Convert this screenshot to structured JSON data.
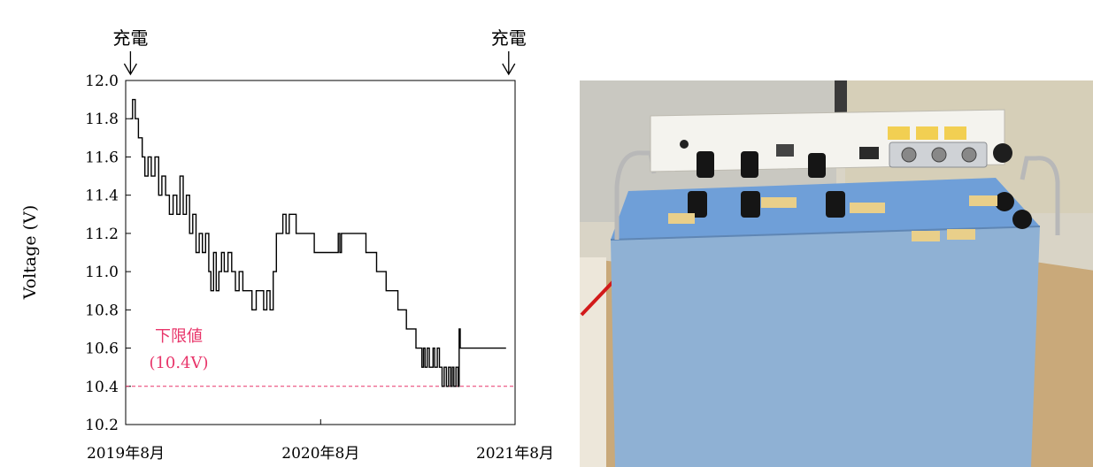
{
  "chart_data": {
    "type": "line",
    "xlabel": "",
    "ylabel": "Voltage (V)",
    "ylim": [
      10.2,
      12.0
    ],
    "xlim": [
      "2019-08",
      "2021-08"
    ],
    "y_ticks": [
      "12.0",
      "11.8",
      "11.6",
      "11.4",
      "11.2",
      "11.0",
      "10.8",
      "10.6",
      "10.4",
      "10.2"
    ],
    "x_ticks": [
      "2019年8月",
      "2020年8月",
      "2021年8月"
    ],
    "grid": false,
    "threshold": {
      "value": 10.4,
      "label_line1": "下限値",
      "label_line2": "(10.4V)",
      "color": "#e8356a"
    },
    "charge_markers": [
      {
        "label": "充電",
        "x": "2019-08-10"
      },
      {
        "label": "充電",
        "x": "2021-07-20"
      }
    ],
    "series": [
      {
        "color": "#000000",
        "points": [
          [
            "2019-08-10",
            11.8
          ],
          [
            "2019-08-14",
            11.9
          ],
          [
            "2019-08-19",
            11.8
          ],
          [
            "2019-08-25",
            11.7
          ],
          [
            "2019-09-01",
            11.6
          ],
          [
            "2019-09-06",
            11.5
          ],
          [
            "2019-09-12",
            11.6
          ],
          [
            "2019-09-18",
            11.5
          ],
          [
            "2019-09-25",
            11.6
          ],
          [
            "2019-10-02",
            11.4
          ],
          [
            "2019-10-08",
            11.5
          ],
          [
            "2019-10-15",
            11.4
          ],
          [
            "2019-10-22",
            11.3
          ],
          [
            "2019-10-29",
            11.4
          ],
          [
            "2019-11-05",
            11.3
          ],
          [
            "2019-11-11",
            11.5
          ],
          [
            "2019-11-17",
            11.3
          ],
          [
            "2019-11-23",
            11.4
          ],
          [
            "2019-11-29",
            11.2
          ],
          [
            "2019-12-05",
            11.3
          ],
          [
            "2019-12-11",
            11.1
          ],
          [
            "2019-12-17",
            11.2
          ],
          [
            "2019-12-23",
            11.1
          ],
          [
            "2019-12-29",
            11.2
          ],
          [
            "2020-01-04",
            11.0
          ],
          [
            "2020-01-08",
            10.9
          ],
          [
            "2020-01-13",
            11.1
          ],
          [
            "2020-01-18",
            10.9
          ],
          [
            "2020-01-23",
            11.0
          ],
          [
            "2020-01-28",
            11.1
          ],
          [
            "2020-02-02",
            11.0
          ],
          [
            "2020-02-09",
            11.1
          ],
          [
            "2020-02-16",
            11.0
          ],
          [
            "2020-02-23",
            10.9
          ],
          [
            "2020-03-01",
            11.0
          ],
          [
            "2020-03-08",
            10.9
          ],
          [
            "2020-03-18",
            10.9
          ],
          [
            "2020-03-25",
            10.8
          ],
          [
            "2020-04-02",
            10.9
          ],
          [
            "2020-04-10",
            10.9
          ],
          [
            "2020-04-16",
            10.8
          ],
          [
            "2020-04-22",
            10.9
          ],
          [
            "2020-04-28",
            10.8
          ],
          [
            "2020-05-04",
            11.0
          ],
          [
            "2020-05-10",
            11.2
          ],
          [
            "2020-05-16",
            11.2
          ],
          [
            "2020-05-22",
            11.3
          ],
          [
            "2020-05-28",
            11.2
          ],
          [
            "2020-06-03",
            11.3
          ],
          [
            "2020-06-10",
            11.3
          ],
          [
            "2020-06-16",
            11.2
          ],
          [
            "2020-07-10",
            11.2
          ],
          [
            "2020-07-20",
            11.1
          ],
          [
            "2020-08-20",
            11.1
          ],
          [
            "2020-09-01",
            11.1
          ],
          [
            "2020-09-03",
            11.2
          ],
          [
            "2020-09-06",
            11.1
          ],
          [
            "2020-09-09",
            11.2
          ],
          [
            "2020-10-20",
            11.2
          ],
          [
            "2020-10-25",
            11.1
          ],
          [
            "2020-11-10",
            11.1
          ],
          [
            "2020-11-14",
            11.0
          ],
          [
            "2020-11-28",
            11.0
          ],
          [
            "2020-12-02",
            10.9
          ],
          [
            "2020-12-20",
            10.9
          ],
          [
            "2020-12-24",
            10.8
          ],
          [
            "2021-01-05",
            10.8
          ],
          [
            "2021-01-09",
            10.7
          ],
          [
            "2021-01-23",
            10.7
          ],
          [
            "2021-01-27",
            10.6
          ],
          [
            "2021-02-04",
            10.6
          ],
          [
            "2021-02-07",
            10.5
          ],
          [
            "2021-02-10",
            10.6
          ],
          [
            "2021-02-13",
            10.5
          ],
          [
            "2021-02-17",
            10.6
          ],
          [
            "2021-02-21",
            10.5
          ],
          [
            "2021-02-28",
            10.6
          ],
          [
            "2021-03-03",
            10.5
          ],
          [
            "2021-03-08",
            10.6
          ],
          [
            "2021-03-12",
            10.5
          ],
          [
            "2021-03-17",
            10.4
          ],
          [
            "2021-03-21",
            10.5
          ],
          [
            "2021-03-25",
            10.4
          ],
          [
            "2021-03-29",
            10.5
          ],
          [
            "2021-04-02",
            10.4
          ],
          [
            "2021-04-05",
            10.5
          ],
          [
            "2021-04-08",
            10.4
          ],
          [
            "2021-04-12",
            10.5
          ],
          [
            "2021-04-16",
            10.4
          ],
          [
            "2021-04-18",
            10.7
          ],
          [
            "2021-04-20",
            10.6
          ],
          [
            "2021-07-15",
            10.6
          ]
        ]
      }
    ]
  },
  "photo": {
    "caption": "",
    "top_labels": [
      "",
      "",
      ""
    ],
    "colors": {
      "case": "#8fb1d4",
      "top": "#6f9fd8",
      "panel": "#f4f3ee",
      "wall": "#d9d4c6",
      "floor": "#c9a97a"
    }
  }
}
